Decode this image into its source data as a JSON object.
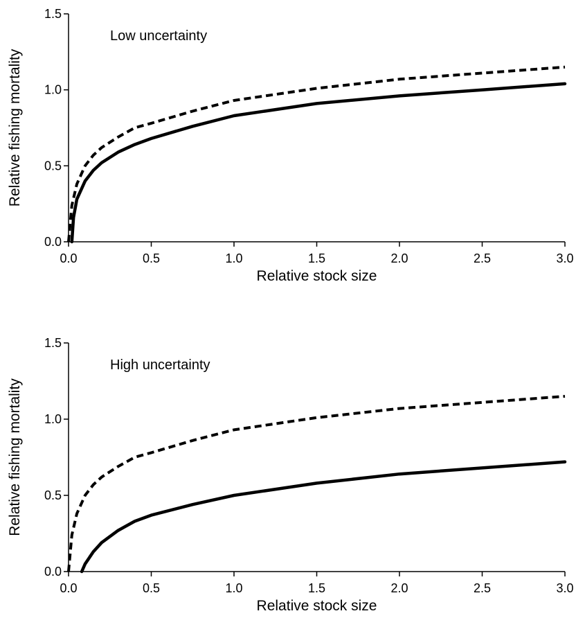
{
  "chart_data": [
    {
      "type": "line",
      "annotation": "Low uncertainty",
      "xlabel": "Relative stock size",
      "ylabel": "Relative fishing mortality",
      "xlim": [
        0,
        3
      ],
      "ylim": [
        0,
        1.5
      ],
      "x_ticks": [
        "0.0",
        "0.5",
        "1.0",
        "1.5",
        "2.0",
        "2.5",
        "3.0"
      ],
      "y_ticks": [
        "0.0",
        "0.5",
        "1.0",
        "1.5"
      ],
      "grid": false,
      "series": [
        {
          "style": "dashed",
          "x": [
            0.0,
            0.02,
            0.05,
            0.1,
            0.15,
            0.2,
            0.3,
            0.4,
            0.5,
            0.75,
            1.0,
            1.5,
            2.0,
            2.5,
            3.0
          ],
          "y": [
            0.0,
            0.24,
            0.38,
            0.5,
            0.57,
            0.62,
            0.69,
            0.75,
            0.78,
            0.86,
            0.93,
            1.01,
            1.07,
            1.11,
            1.15
          ]
        },
        {
          "style": "solid",
          "x": [
            0.02,
            0.03,
            0.05,
            0.1,
            0.15,
            0.2,
            0.3,
            0.4,
            0.5,
            0.75,
            1.0,
            1.5,
            2.0,
            2.5,
            3.0
          ],
          "y": [
            0.0,
            0.16,
            0.28,
            0.4,
            0.47,
            0.52,
            0.59,
            0.64,
            0.68,
            0.76,
            0.83,
            0.91,
            0.96,
            1.0,
            1.04
          ]
        }
      ]
    },
    {
      "type": "line",
      "annotation": "High uncertainty",
      "xlabel": "Relative stock size",
      "ylabel": "Relative fishing mortality",
      "xlim": [
        0,
        3
      ],
      "ylim": [
        0,
        1.5
      ],
      "x_ticks": [
        "0.0",
        "0.5",
        "1.0",
        "1.5",
        "2.0",
        "2.5",
        "3.0"
      ],
      "y_ticks": [
        "0.0",
        "0.5",
        "1.0",
        "1.5"
      ],
      "grid": false,
      "series": [
        {
          "style": "dashed",
          "x": [
            0.0,
            0.02,
            0.05,
            0.1,
            0.15,
            0.2,
            0.3,
            0.4,
            0.5,
            0.75,
            1.0,
            1.5,
            2.0,
            2.5,
            3.0
          ],
          "y": [
            0.0,
            0.24,
            0.38,
            0.5,
            0.57,
            0.62,
            0.69,
            0.75,
            0.78,
            0.86,
            0.93,
            1.01,
            1.07,
            1.11,
            1.15
          ]
        },
        {
          "style": "solid",
          "x": [
            0.08,
            0.1,
            0.15,
            0.2,
            0.3,
            0.4,
            0.5,
            0.75,
            1.0,
            1.5,
            2.0,
            2.5,
            3.0
          ],
          "y": [
            0.0,
            0.05,
            0.13,
            0.19,
            0.27,
            0.33,
            0.37,
            0.44,
            0.5,
            0.58,
            0.64,
            0.68,
            0.72
          ]
        }
      ]
    }
  ]
}
